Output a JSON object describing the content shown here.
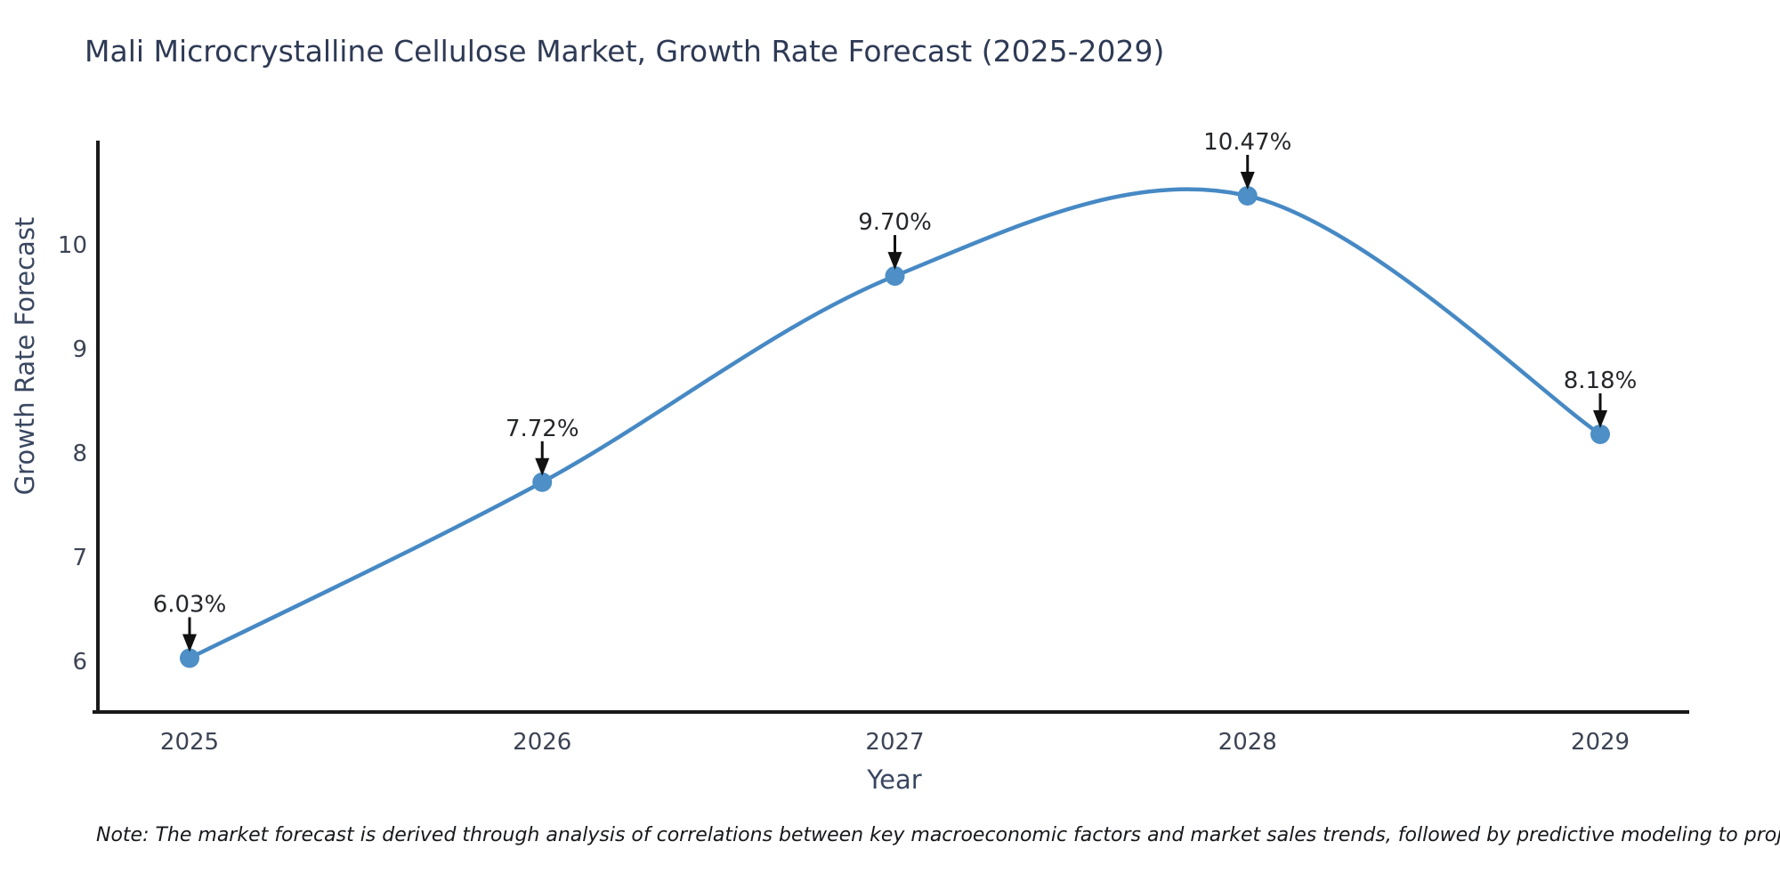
{
  "title": "Mali Microcrystalline Cellulose Market, Growth Rate Forecast (2025-2029)",
  "note": "Note: The market forecast is derived through analysis of correlations between key macroeconomic factors and market sales trends, followed by predictive modeling to project future sales",
  "chart_data": {
    "type": "line",
    "title": "Mali Microcrystalline Cellulose Market, Growth Rate Forecast (2025-2029)",
    "xlabel": "Year",
    "ylabel": "Growth Rate Forecast",
    "x": [
      2025,
      2026,
      2027,
      2028,
      2029
    ],
    "values": [
      6.03,
      7.72,
      9.7,
      10.47,
      8.18
    ],
    "point_labels": [
      "6.03%",
      "7.72%",
      "9.70%",
      "10.47%",
      "8.18%"
    ],
    "yticks": [
      6,
      7,
      8,
      9,
      10
    ],
    "ylim": [
      5.51,
      11.07
    ],
    "grid": false,
    "legend": false,
    "line_style": "smooth-spline",
    "marker": "circle",
    "annotation_arrow": "down-arrow"
  },
  "colors": {
    "background": "#ffffff",
    "line": "#4689c4",
    "marker": "#4d8fc6",
    "axis": "#1a1a1a",
    "title_text": "#2e3a55",
    "axis_label_text": "#3a4761",
    "tick_text": "#3c4454",
    "annotation_text": "#24262a",
    "arrow": "#111111",
    "note_text": "#16181c"
  }
}
